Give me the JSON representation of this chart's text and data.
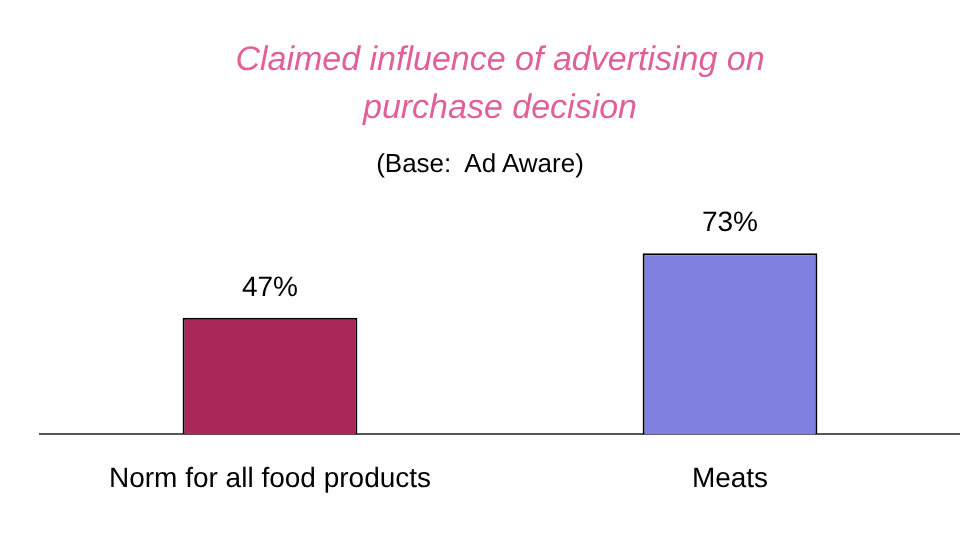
{
  "chart_data": {
    "type": "bar",
    "title": "Claimed influence of advertising on purchase decision",
    "subtitle": "(Base:  Ad Aware)",
    "categories": [
      "Norm for all food products",
      "Meats"
    ],
    "values": [
      47,
      73
    ],
    "colors": [
      "#a8285a",
      "#8080e0"
    ],
    "value_labels": [
      "47%",
      "73%"
    ],
    "grid": false
  }
}
